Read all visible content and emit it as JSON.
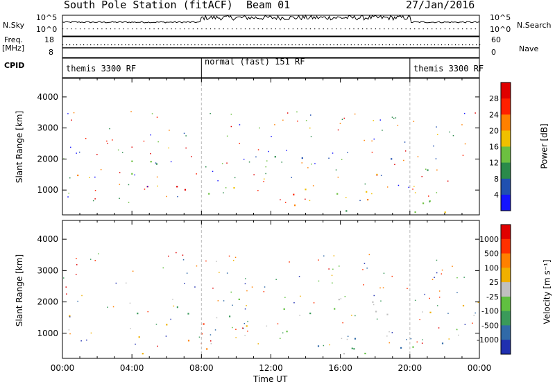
{
  "header": {
    "station": "South Pole Station (fitACF)",
    "beam": "Beam 01",
    "date": "27/Jan/2016"
  },
  "noise_panel": {
    "left_label": "N.Sky",
    "left_ticks": [
      "10^5",
      "10^0"
    ],
    "right_ticks": [
      "10^5",
      "10^0"
    ],
    "right_label": "N.Search"
  },
  "freq_panel": {
    "left_label_line1": "Freq.",
    "left_label_line2": "[MHz]",
    "left_ticks": [
      "18",
      "8"
    ],
    "right_ticks": [
      "60",
      "0"
    ],
    "right_label": "Nave"
  },
  "cpid": {
    "label": "CPID",
    "segments": [
      {
        "name": "themis 3300 RF",
        "start_hour": 0,
        "end_hour": 8
      },
      {
        "name": "normal (fast) 151 RF",
        "start_hour": 8,
        "end_hour": 20
      },
      {
        "name": "themis 3300 RF",
        "start_hour": 20,
        "end_hour": 24
      }
    ]
  },
  "chart_data": [
    {
      "type": "heatmap",
      "quantity": "power",
      "ylabel": "Slant Range [km]",
      "ylim": [
        200,
        4600
      ],
      "yticks": [
        1000,
        2000,
        3000,
        4000
      ],
      "xlim_hours": [
        0,
        24
      ],
      "colorbar": {
        "label": "Power [dB]",
        "ticks": [
          "4",
          "8",
          "12",
          "16",
          "20",
          "24",
          "28"
        ],
        "colors": [
          "#1414ff",
          "#2050b0",
          "#2a8a4a",
          "#6cc040",
          "#f0c000",
          "#ff8000",
          "#ff2000",
          "#e00000"
        ]
      },
      "bands": [
        {
          "x0": 0,
          "x1": 7.5,
          "y0": 1750,
          "y1": 2150,
          "level": 0.35
        },
        {
          "x0": 0.5,
          "x1": 7.5,
          "y0": 1450,
          "y1": 1750,
          "level": 0.6
        },
        {
          "x0": 4.5,
          "x1": 8,
          "y0": 450,
          "y1": 1150,
          "level": 0.85
        },
        {
          "x0": 8,
          "x1": 20,
          "y0": 500,
          "y1": 1100,
          "level": 0.6
        },
        {
          "x0": 12,
          "x1": 20,
          "y0": 1800,
          "y1": 2150,
          "level": 0.3
        },
        {
          "x0": 17,
          "x1": 24,
          "y0": 1500,
          "y1": 1750,
          "level": 0.5
        },
        {
          "x0": 20,
          "x1": 24,
          "y0": 550,
          "y1": 1000,
          "level": 0.55
        },
        {
          "x0": 0,
          "x1": 24,
          "y0": 300,
          "y1": 420,
          "level": 0.5
        }
      ]
    },
    {
      "type": "heatmap",
      "quantity": "velocity",
      "ylabel": "Slant Range [km]",
      "ylim": [
        200,
        4600
      ],
      "yticks": [
        1000,
        2000,
        3000,
        4000
      ],
      "xlim_hours": [
        0,
        24
      ],
      "colorbar": {
        "label": "Velocity [m s⁻¹]",
        "ticks": [
          "1000",
          "500",
          "100",
          "25",
          "-25",
          "-100",
          "-500",
          "-1000"
        ],
        "colors": [
          "#2030b0",
          "#306aa8",
          "#3a9a5a",
          "#60c040",
          "#c0c0c0",
          "#f0b000",
          "#ff8000",
          "#ff3000",
          "#e00000"
        ]
      },
      "bands": [
        {
          "x0": 0,
          "x1": 24,
          "y0": 1550,
          "y1": 2150,
          "level": 0.45
        },
        {
          "x0": 4,
          "x1": 11,
          "y0": 450,
          "y1": 1350,
          "level": 0.72
        },
        {
          "x0": 11,
          "x1": 20,
          "y0": 500,
          "y1": 1100,
          "level": 0.2
        },
        {
          "x0": 20,
          "x1": 24,
          "y0": 500,
          "y1": 900,
          "level": 0.25
        },
        {
          "x0": 0,
          "x1": 24,
          "y0": 300,
          "y1": 420,
          "level": 0.55
        }
      ]
    }
  ],
  "x_axis": {
    "ticks": [
      "00:00",
      "04:00",
      "08:00",
      "12:00",
      "16:00",
      "20:00",
      "00:00"
    ],
    "label": "Time UT"
  }
}
